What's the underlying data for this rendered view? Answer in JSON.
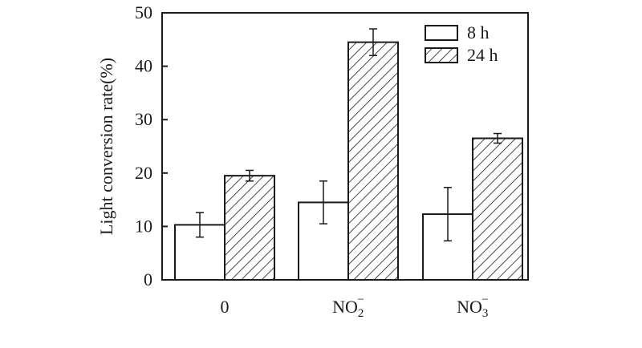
{
  "chart_data": {
    "type": "bar",
    "title": "",
    "xlabel": "",
    "ylabel": "Light conversion rate(%)",
    "ylim": [
      0,
      50
    ],
    "yticks": [
      0,
      10,
      20,
      30,
      40,
      50
    ],
    "categories": [
      {
        "base": "0",
        "sub": "",
        "sup": ""
      },
      {
        "base": "NO",
        "sub": "2",
        "sup": "−"
      },
      {
        "base": "NO",
        "sub": "3",
        "sup": "−"
      }
    ],
    "series": [
      {
        "name": "8 h",
        "pattern": "empty",
        "values": [
          10.3,
          14.5,
          12.3
        ],
        "errors": [
          2.3,
          4.0,
          5.0
        ]
      },
      {
        "name": "24 h",
        "pattern": "hatched",
        "values": [
          19.5,
          44.5,
          26.5
        ],
        "errors": [
          1.0,
          2.5,
          0.9
        ]
      }
    ],
    "legend_position": "top-right",
    "grid": false
  }
}
